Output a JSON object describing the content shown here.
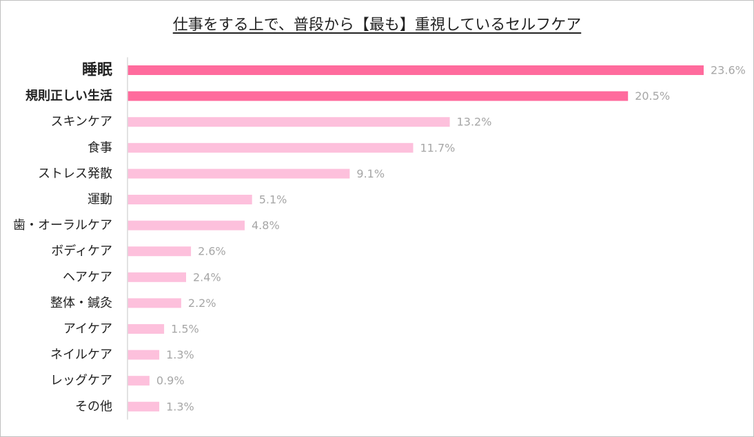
{
  "chart_data": {
    "type": "bar",
    "orientation": "horizontal",
    "title": "仕事をする上で、普段から【最も】重視しているセルフケア",
    "categories": [
      "睡眠",
      "規則正しい生活",
      "スキンケア",
      "食事",
      "ストレス発散",
      "運動",
      "歯・オーラルケア",
      "ボディケア",
      "ヘアケア",
      "整体・鍼灸",
      "アイケア",
      "ネイルケア",
      "レッグケア",
      "その他"
    ],
    "values": [
      23.6,
      20.5,
      13.2,
      11.7,
      9.1,
      5.1,
      4.8,
      2.6,
      2.4,
      2.2,
      1.5,
      1.3,
      0.9,
      1.3
    ],
    "value_labels": [
      "23.6%",
      "20.5%",
      "13.2%",
      "11.7%",
      "9.1%",
      "5.1%",
      "4.8%",
      "2.6%",
      "2.4%",
      "2.2%",
      "1.5%",
      "1.3%",
      "0.9%",
      "1.3%"
    ],
    "highlighted": [
      0,
      1
    ],
    "xlim": [
      0,
      23.6
    ],
    "colors": {
      "highlight": "#ff6b9d",
      "normal": "#fdc0dc",
      "highlight_text": "#ef5a8f",
      "value_text": "#a6a6a6",
      "axis": "#d9d9d9"
    },
    "grid": false,
    "legend": "none"
  }
}
